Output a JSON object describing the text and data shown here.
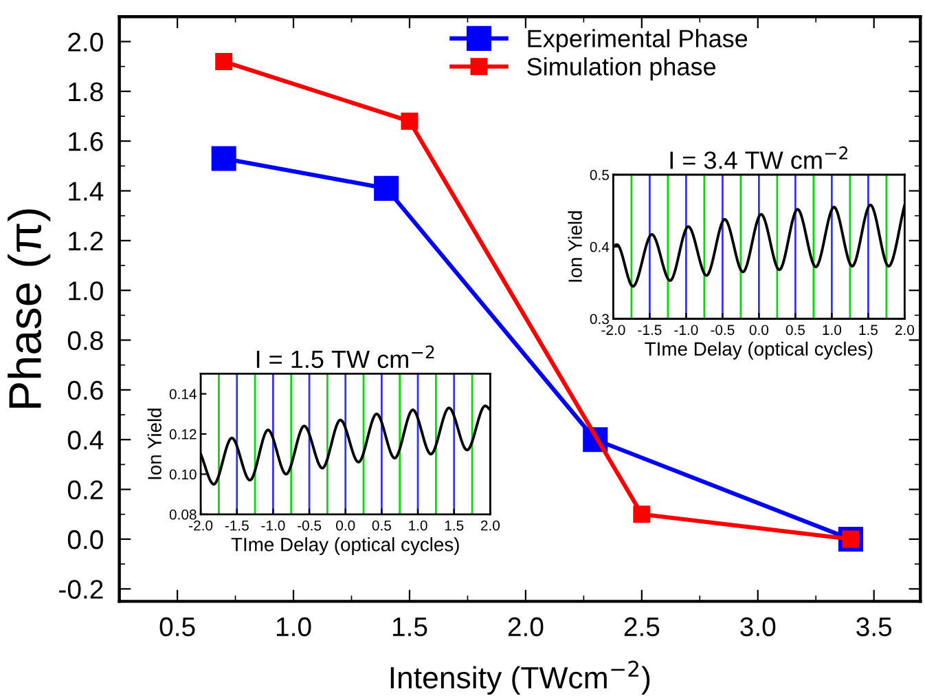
{
  "chart_data": [
    {
      "type": "line",
      "xlabel": "Intensity (TWcm$^{−2}$)",
      "ylabel": "Phase (π)",
      "xlim": [
        0.25,
        3.7
      ],
      "ylim": [
        -0.25,
        2.1
      ],
      "xticks": [
        0.5,
        {
          "value": 1,
          "label": "1.0"
        },
        1.5,
        {
          "value": 2,
          "label": "2.0"
        },
        2.5,
        {
          "value": 3,
          "label": "3.0"
        },
        3.5
      ],
      "yticks": [
        -0.2,
        {
          "value": 0,
          "label": "0.0"
        },
        0.2,
        0.4,
        0.6,
        0.8,
        {
          "value": 1,
          "label": "1.0"
        },
        1.2,
        1.4,
        1.6,
        1.8,
        {
          "value": 2,
          "label": "2.0"
        }
      ],
      "marker": "square",
      "line_style": "solid",
      "legend": "top",
      "grid": false,
      "series": [
        {
          "name": "Experimental Phase",
          "color": "#0000ff",
          "x": [
            0.7,
            1.4,
            2.3,
            3.4
          ],
          "values": [
            1.53,
            1.41,
            0.4,
            0.0
          ]
        },
        {
          "name": "Simulation phase",
          "color": "#ff0000",
          "x": [
            0.7,
            1.5,
            2.5,
            3.4
          ],
          "values": [
            1.92,
            1.68,
            0.1,
            0.0
          ]
        }
      ]
    },
    {
      "type": "line",
      "title": "I = 1.5 TW cm$^{−2}$",
      "xlabel": "TIme Delay (optical cycles)",
      "ylabel": "Ion Yield",
      "xlim": [
        -2.0,
        2.0
      ],
      "ylim": [
        0.08,
        0.15
      ],
      "xticks": [
        {
          "value": -2,
          "label": "-2.0"
        },
        -1.5,
        {
          "value": -1,
          "label": "-1.0"
        },
        -0.5,
        {
          "value": 0,
          "label": "0.0"
        },
        0.5,
        {
          "value": 1,
          "label": "1.0"
        },
        1.5,
        {
          "value": 2,
          "label": "2.0"
        }
      ],
      "yticks": [
        {
          "value": 0.08,
          "label": "0.08"
        },
        {
          "value": 0.1,
          "label": "0.10"
        },
        {
          "value": 0.12,
          "label": "0.12"
        },
        {
          "value": 0.14,
          "label": "0.14"
        }
      ],
      "grid": false,
      "legend": false,
      "ref_lines": [
        {
          "axis": "x",
          "value": -1.75,
          "color": "#00dd00"
        },
        {
          "axis": "x",
          "value": -1.25,
          "color": "#00dd00"
        },
        {
          "axis": "x",
          "value": -0.75,
          "color": "#00dd00"
        },
        {
          "axis": "x",
          "value": -0.25,
          "color": "#00dd00"
        },
        {
          "axis": "x",
          "value": 0.25,
          "color": "#00dd00"
        },
        {
          "axis": "x",
          "value": 0.75,
          "color": "#00dd00"
        },
        {
          "axis": "x",
          "value": 1.25,
          "color": "#00dd00"
        },
        {
          "axis": "x",
          "value": 1.75,
          "color": "#00dd00"
        },
        {
          "axis": "x",
          "value": -1.5,
          "color": "#3333ff"
        },
        {
          "axis": "x",
          "value": -1.0,
          "color": "#3333ff"
        },
        {
          "axis": "x",
          "value": -0.5,
          "color": "#3333ff"
        },
        {
          "axis": "x",
          "value": 0.0,
          "color": "#3333ff"
        },
        {
          "axis": "x",
          "value": 0.5,
          "color": "#3333ff"
        },
        {
          "axis": "x",
          "value": 1.0,
          "color": "#3333ff"
        },
        {
          "axis": "x",
          "value": 1.5,
          "color": "#3333ff"
        }
      ],
      "series": [
        {
          "color": "#000000",
          "x": [
            -2.0,
            -1.82,
            -1.57,
            -1.32,
            -1.07,
            -0.82,
            -0.57,
            -0.32,
            -0.07,
            0.18,
            0.43,
            0.68,
            0.93,
            1.18,
            1.43,
            1.68,
            1.93,
            2.0
          ],
          "values": [
            0.11,
            0.095,
            0.118,
            0.097,
            0.122,
            0.1,
            0.124,
            0.103,
            0.127,
            0.106,
            0.13,
            0.108,
            0.132,
            0.11,
            0.133,
            0.112,
            0.134,
            0.132
          ]
        }
      ]
    },
    {
      "type": "line",
      "title": "I = 3.4 TW cm$^{−2}$",
      "xlabel": "TIme Delay (optical cycles)",
      "ylabel": "Ion Yield",
      "xlim": [
        -2.0,
        2.0
      ],
      "ylim": [
        0.3,
        0.5
      ],
      "xticks": [
        {
          "value": -2,
          "label": "-2.0"
        },
        -1.5,
        {
          "value": -1,
          "label": "-1.0"
        },
        -0.5,
        {
          "value": 0,
          "label": "0.0"
        },
        0.5,
        {
          "value": 1,
          "label": "1.0"
        },
        1.5,
        {
          "value": 2,
          "label": "2.0"
        }
      ],
      "yticks": [
        0.3,
        0.4,
        0.5
      ],
      "grid": false,
      "legend": false,
      "ref_lines": [
        {
          "axis": "x",
          "value": -1.75,
          "color": "#00dd00"
        },
        {
          "axis": "x",
          "value": -1.25,
          "color": "#00dd00"
        },
        {
          "axis": "x",
          "value": -0.75,
          "color": "#00dd00"
        },
        {
          "axis": "x",
          "value": -0.25,
          "color": "#00dd00"
        },
        {
          "axis": "x",
          "value": 0.25,
          "color": "#00dd00"
        },
        {
          "axis": "x",
          "value": 0.75,
          "color": "#00dd00"
        },
        {
          "axis": "x",
          "value": 1.25,
          "color": "#00dd00"
        },
        {
          "axis": "x",
          "value": 1.75,
          "color": "#00dd00"
        },
        {
          "axis": "x",
          "value": -1.5,
          "color": "#3333ff"
        },
        {
          "axis": "x",
          "value": -1.0,
          "color": "#3333ff"
        },
        {
          "axis": "x",
          "value": -0.5,
          "color": "#3333ff"
        },
        {
          "axis": "x",
          "value": 0.0,
          "color": "#3333ff"
        },
        {
          "axis": "x",
          "value": 0.5,
          "color": "#3333ff"
        },
        {
          "axis": "x",
          "value": 1.0,
          "color": "#3333ff"
        },
        {
          "axis": "x",
          "value": 1.5,
          "color": "#3333ff"
        }
      ],
      "series": [
        {
          "color": "#000000",
          "x": [
            -2.0,
            -1.95,
            -1.73,
            -1.47,
            -1.22,
            -0.97,
            -0.72,
            -0.47,
            -0.22,
            0.03,
            0.28,
            0.53,
            0.78,
            1.03,
            1.28,
            1.53,
            1.78,
            2.0
          ],
          "values": [
            0.4,
            0.403,
            0.345,
            0.417,
            0.353,
            0.428,
            0.36,
            0.438,
            0.365,
            0.445,
            0.368,
            0.452,
            0.372,
            0.455,
            0.373,
            0.458,
            0.373,
            0.458
          ]
        }
      ]
    }
  ]
}
